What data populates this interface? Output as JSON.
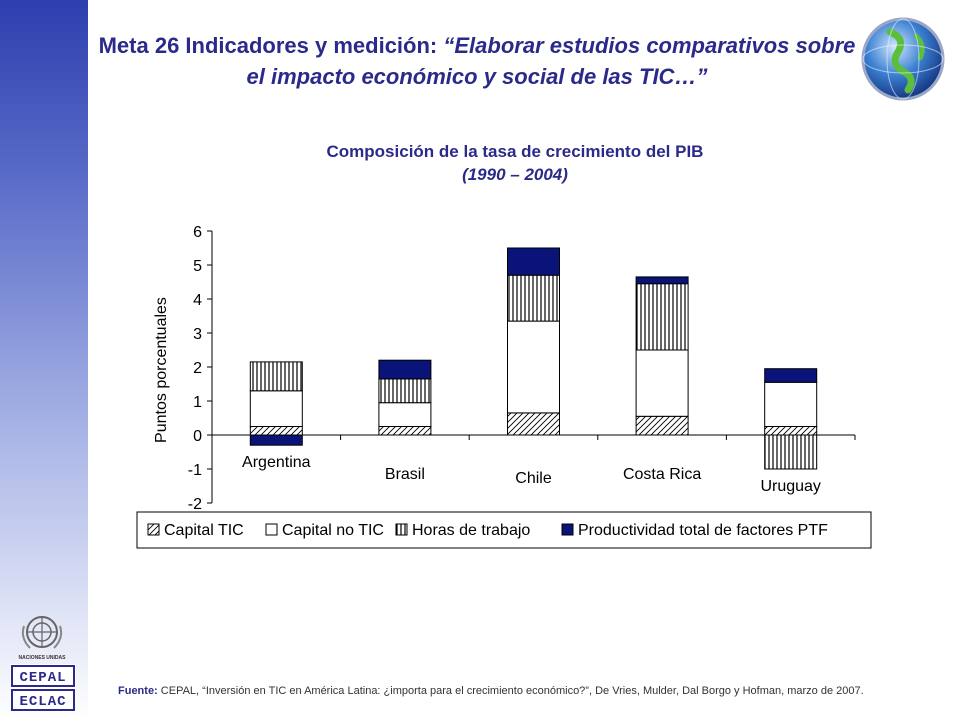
{
  "slide": {
    "title_main": "Meta 26 Indicadores y medición: ",
    "title_quote": "“Elaborar estudios comparativos sobre el impacto económico y social de las TIC…”",
    "source_label": "Fuente:",
    "source_text": " CEPAL, “Inversión en TIC en América Latina: ¿importa para el crecimiento económico?”,  De Vries, Mulder, Dal Borgo y Hofman, marzo  de 2007.",
    "logo_un_text": "NACIONES UNIDAS",
    "logo_cepal_top": "CEPAL",
    "logo_cepal_bottom": "ECLAC"
  },
  "chart_data": {
    "type": "bar",
    "stacked": true,
    "title": "Composición de la tasa de crecimiento del PIB",
    "subtitle": "(1990 – 2004)",
    "ylabel": "Puntos porcentuales",
    "xlabel": "",
    "ylim": [
      -2,
      6
    ],
    "yticks": [
      -2,
      -1,
      0,
      1,
      2,
      3,
      4,
      5,
      6
    ],
    "categories": [
      "Argentina",
      "Brasil",
      "Chile",
      "Costa Rica",
      "Uruguay"
    ],
    "series": [
      {
        "name": "Capital TIC",
        "values": [
          0.25,
          0.25,
          0.65,
          0.55,
          0.25
        ],
        "pattern": "diagonal"
      },
      {
        "name": "Capital no TIC",
        "values": [
          1.05,
          0.7,
          2.7,
          1.95,
          1.3
        ],
        "pattern": "white"
      },
      {
        "name": "Horas de trabajo",
        "values": [
          0.85,
          0.7,
          1.35,
          1.95,
          -1.0
        ],
        "pattern": "vertical"
      },
      {
        "name": "Productividad total de factores PTF",
        "values": [
          -0.3,
          0.55,
          0.8,
          0.2,
          0.4
        ],
        "pattern": "solid",
        "color": "#0a1478"
      }
    ],
    "legend_position": "bottom",
    "grid": false
  }
}
